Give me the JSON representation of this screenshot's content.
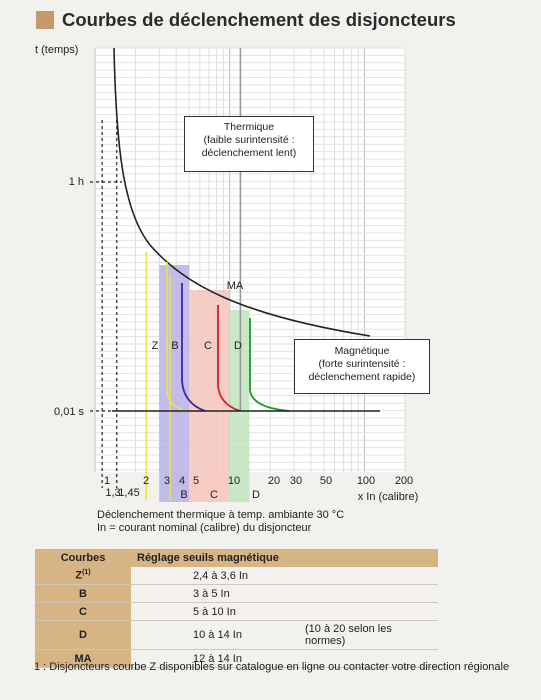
{
  "title": "Courbes de déclenchement des disjoncteurs",
  "colors": {
    "accent": "#c59a6a",
    "header_bg": "#d7b484",
    "Z": "#f2e23a",
    "B": "#3a2aa0",
    "C": "#d2202a",
    "D": "#1b9a2a",
    "MA": "#999999"
  },
  "chart_data": {
    "type": "line",
    "ylabel": "t (temps)",
    "xlabel": "x In (calibre)",
    "y_ticks": [
      {
        "label": "1 h",
        "value": 3600
      },
      {
        "label": "0,01 s",
        "value": 0.01
      }
    ],
    "x_ticks": [
      "1",
      "1,3",
      "1,45",
      "2",
      "3",
      "4",
      "5",
      "10",
      "20",
      "30",
      "50",
      "100",
      "200"
    ],
    "x_range": [
      1,
      200
    ],
    "x_scale": "log",
    "y_scale": "log",
    "grid": true,
    "curves": [
      {
        "name": "Z",
        "zone": [
          2.4,
          3.6
        ]
      },
      {
        "name": "B",
        "zone": [
          3,
          5
        ]
      },
      {
        "name": "C",
        "zone": [
          5,
          10
        ]
      },
      {
        "name": "D",
        "zone": [
          10,
          14
        ]
      },
      {
        "name": "MA",
        "value": 12
      }
    ],
    "zone_labels": [
      "B",
      "C",
      "D"
    ],
    "thermal_box": "Thermique\n(faible surintensité :\ndéclenchement lent)",
    "magnetic_box": "Magnétique\n(forte surintensité :\ndéclenchement rapide)"
  },
  "notes": [
    "Déclenchement thermique à temp. ambiante 30 °C",
    "In = courant nominal (calibre) du disjoncteur"
  ],
  "table": {
    "headers": [
      "Courbes",
      "Réglage seuils magnétique"
    ],
    "rows": [
      {
        "name": "Z",
        "sup": "(1)",
        "value": "2,4 à 3,6 In",
        "extra": ""
      },
      {
        "name": "B",
        "sup": "",
        "value": "3 à 5 In",
        "extra": ""
      },
      {
        "name": "C",
        "sup": "",
        "value": "5 à 10 In",
        "extra": ""
      },
      {
        "name": "D",
        "sup": "",
        "value": "10 à 14 In",
        "extra": "(10 à 20 selon les normes)"
      },
      {
        "name": "MA",
        "sup": "",
        "value": "12 à 14 In",
        "extra": ""
      }
    ]
  },
  "footnote": "1 : Disjoncteurs courbe Z disponibles sur catalogue en ligne ou contacter votre direction régionale"
}
